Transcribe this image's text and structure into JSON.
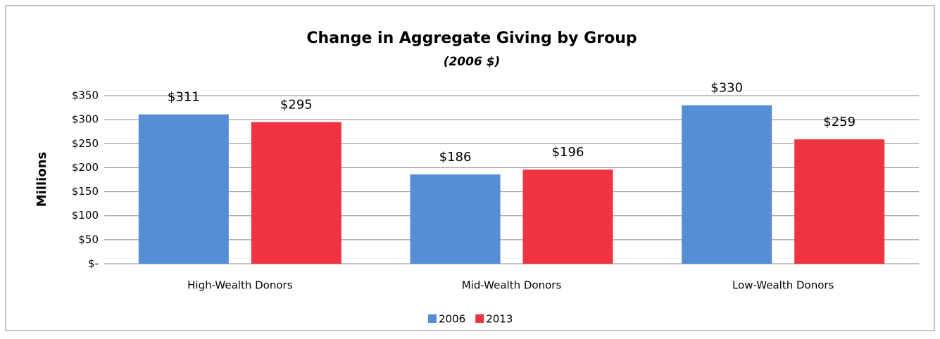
{
  "chart_data": {
    "type": "bar",
    "title": "Change in Aggregate Giving by Group",
    "subtitle": "(2006 $)",
    "y_label": "Millions",
    "categories": [
      "High-Wealth Donors",
      "Mid-Wealth Donors",
      "Low-Wealth Donors"
    ],
    "series": [
      {
        "name": "2006",
        "color": "#558ed5",
        "values": [
          311,
          186,
          330
        ],
        "value_labels": [
          "$311",
          "$186",
          "$330"
        ]
      },
      {
        "name": "2013",
        "color": "#f03341",
        "values": [
          295,
          196,
          259
        ],
        "value_labels": [
          "$295",
          "$196",
          "$259"
        ]
      }
    ],
    "ylim": [
      0,
      350
    ],
    "yticks": [
      {
        "value": 0,
        "label": "$-"
      },
      {
        "value": 50,
        "label": "$50"
      },
      {
        "value": 100,
        "label": "$100"
      },
      {
        "value": 150,
        "label": "$150"
      },
      {
        "value": 200,
        "label": "$200"
      },
      {
        "value": 250,
        "label": "$250"
      },
      {
        "value": 300,
        "label": "$300"
      },
      {
        "value": 350,
        "label": "$350"
      }
    ],
    "grid": true,
    "legend": "bottom"
  }
}
